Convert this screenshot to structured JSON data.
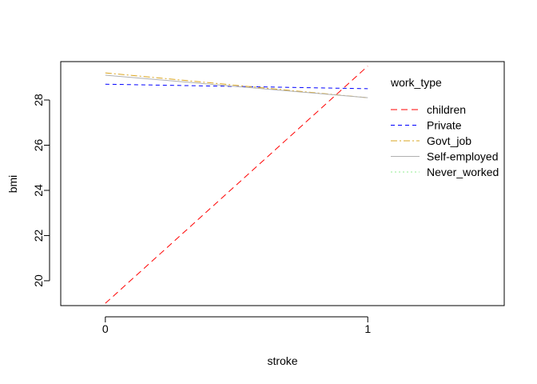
{
  "chart_data": {
    "type": "line",
    "xlabel": "stroke",
    "ylabel": "bmi",
    "x": [
      0,
      1
    ],
    "x_tick_labels": [
      "0",
      "1"
    ],
    "xlim": [
      -0.17,
      1.52
    ],
    "ylim": [
      18.9,
      29.7
    ],
    "y_ticks": [
      20,
      22,
      24,
      26,
      28
    ],
    "legend": {
      "title": "work_type",
      "position": "top-right",
      "box": false
    },
    "series": [
      {
        "name": "children",
        "values": [
          19.0,
          29.5
        ],
        "color": "#ff0000",
        "dash": "8,5"
      },
      {
        "name": "Private",
        "values": [
          28.7,
          28.5
        ],
        "color": "#0000ff",
        "dash": "5,4"
      },
      {
        "name": "Govt_job",
        "values": [
          29.2,
          28.1
        ],
        "color": "#daa520",
        "dash": "8,3,2,3"
      },
      {
        "name": "Self-employed",
        "values": [
          29.1,
          28.1
        ],
        "color": "#b0b0b0",
        "dash": ""
      },
      {
        "name": "Never_worked",
        "values": [
          null,
          null
        ],
        "color": "#90ee90",
        "dash": "2,3"
      }
    ]
  }
}
